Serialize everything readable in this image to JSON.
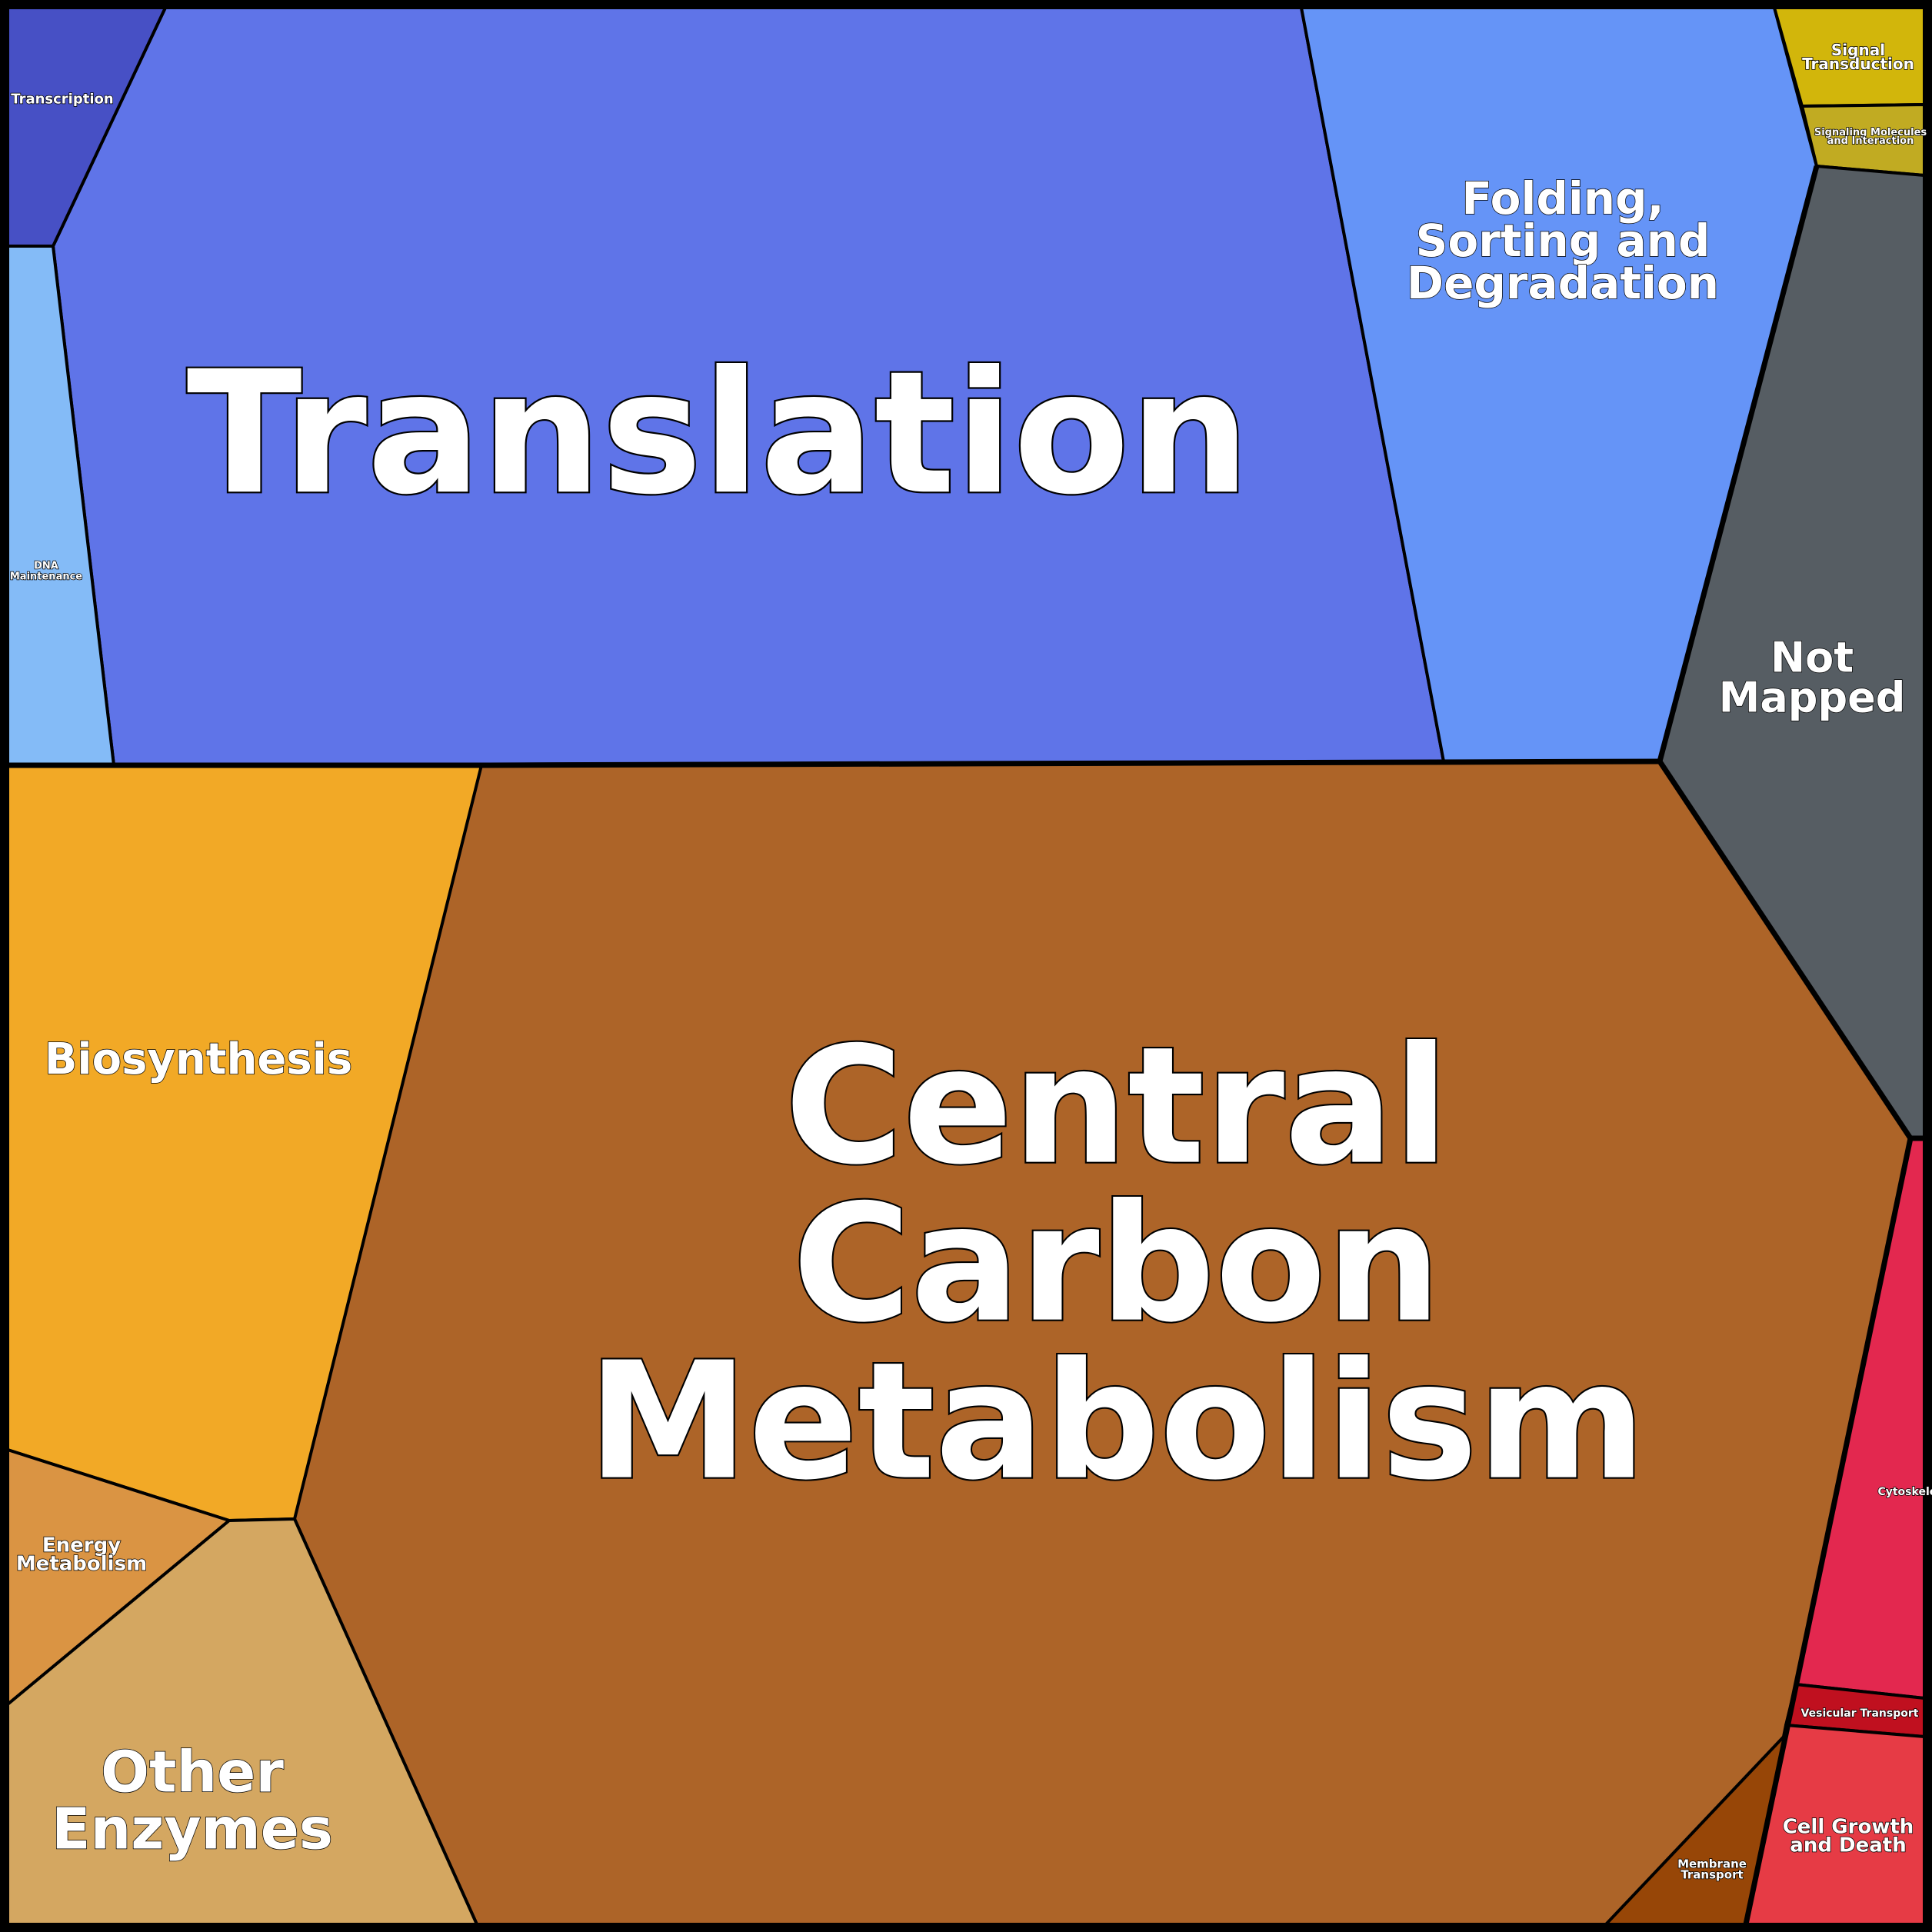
{
  "diagram": {
    "type": "voronoi-treemap",
    "cells": [
      {
        "id": "translation",
        "label": [
          "Translation"
        ],
        "color": "#5f74e8"
      },
      {
        "id": "transcription",
        "label": [
          "Transcription"
        ],
        "color": "#4750c5"
      },
      {
        "id": "dna-maintenance",
        "label": [
          "DNA",
          "Maintenance"
        ],
        "color": "#84bbf7"
      },
      {
        "id": "folding",
        "label": [
          "Folding,",
          "Sorting and",
          "Degradation"
        ],
        "color": "#6594f7"
      },
      {
        "id": "signal-transduction",
        "label": [
          "Signal",
          "Transduction"
        ],
        "color": "#d2b60b"
      },
      {
        "id": "signaling-molecules",
        "label": [
          "Signaling Molecules",
          "and Interaction"
        ],
        "color": "#c1ab22"
      },
      {
        "id": "not-mapped",
        "label": [
          "Not",
          "Mapped"
        ],
        "color": "#565d63"
      },
      {
        "id": "central-carbon",
        "label": [
          "Central",
          "Carbon",
          "Metabolism"
        ],
        "color": "#ad6428"
      },
      {
        "id": "biosynthesis",
        "label": [
          "Biosynthesis"
        ],
        "color": "#f2a926"
      },
      {
        "id": "energy-metabolism",
        "label": [
          "Energy",
          "Metabolism"
        ],
        "color": "#da9443"
      },
      {
        "id": "other-enzymes",
        "label": [
          "Other",
          "Enzymes"
        ],
        "color": "#d4a761"
      },
      {
        "id": "cytoskeleton",
        "label": [
          "Cytoskeleton"
        ],
        "color": "#e3284f"
      },
      {
        "id": "vesicular-transport",
        "label": [
          "Vesicular Transport"
        ],
        "color": "#c0101f"
      },
      {
        "id": "cell-growth",
        "label": [
          "Cell Growth",
          "and Death"
        ],
        "color": "#e63b45"
      },
      {
        "id": "membrane-transport",
        "label": [
          "Membrane",
          "Transport"
        ],
        "color": "#974607"
      }
    ]
  }
}
